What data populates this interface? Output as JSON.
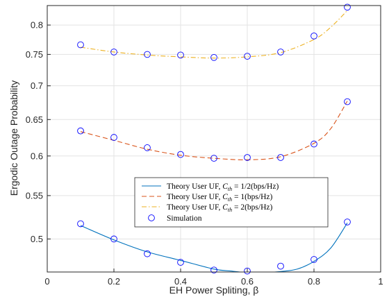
{
  "chart_data": {
    "type": "line",
    "xlabel": "EH Power Spliting, β",
    "ylabel": "Ergodic Outage Probability",
    "xlim": [
      0,
      1
    ],
    "xticks": [
      0,
      0.2,
      0.4,
      0.6,
      0.8,
      1
    ],
    "xtick_labels": [
      "0",
      "0.2",
      "0.4",
      "0.6",
      "0.8",
      "1"
    ],
    "ylim_scale": "log",
    "ylim": [
      0.465,
      0.835
    ],
    "yticks": [
      0.5,
      0.55,
      0.6,
      0.65,
      0.7,
      0.75,
      0.8
    ],
    "ytick_labels": [
      "0.5",
      "0.55",
      "0.6",
      "0.65",
      "0.7",
      "0.75",
      "0.8"
    ],
    "grid": true,
    "legend_position": "lower-center",
    "series": [
      {
        "name": "Theory User UF, C_th = 1/2(bps/Hz)",
        "legend_parts": [
          "Theory User UF, ",
          "C",
          "th",
          " = 1/2(bps/Hz)"
        ],
        "color": "#0072BD",
        "style": "solid",
        "x": [
          0.1,
          0.2,
          0.3,
          0.4,
          0.5,
          0.55,
          0.6,
          0.65,
          0.7,
          0.75,
          0.8,
          0.85,
          0.9
        ],
        "y": [
          0.515,
          0.499,
          0.486,
          0.477,
          0.468,
          0.466,
          0.4645,
          0.4645,
          0.4655,
          0.468,
          0.476,
          0.49,
          0.518
        ]
      },
      {
        "name": "Theory User UF, C_th = 1(bps/Hz)",
        "legend_parts": [
          "Theory User UF, ",
          "C",
          "th",
          " = 1(bps/Hz)"
        ],
        "color": "#D95319",
        "style": "dashed",
        "x": [
          0.1,
          0.2,
          0.3,
          0.4,
          0.5,
          0.6,
          0.7,
          0.8,
          0.85,
          0.9
        ],
        "y": [
          0.633,
          0.621,
          0.609,
          0.601,
          0.597,
          0.595,
          0.599,
          0.617,
          0.637,
          0.677
        ]
      },
      {
        "name": "Theory User UF, C_th = 2(bps/Hz)",
        "legend_parts": [
          "Theory User UF, ",
          "C",
          "th",
          " = 2(bps/Hz)"
        ],
        "color": "#EDB120",
        "style": "dashdot",
        "x": [
          0.1,
          0.2,
          0.3,
          0.4,
          0.5,
          0.6,
          0.7,
          0.8,
          0.85,
          0.9
        ],
        "y": [
          0.762,
          0.754,
          0.749,
          0.746,
          0.744,
          0.746,
          0.753,
          0.775,
          0.796,
          0.826
        ]
      }
    ],
    "simulation": {
      "name": "Simulation",
      "marker": "circle",
      "color": "#0000FF",
      "points": [
        {
          "x": 0.1,
          "y": 0.517
        },
        {
          "x": 0.2,
          "y": 0.5
        },
        {
          "x": 0.3,
          "y": 0.484
        },
        {
          "x": 0.4,
          "y": 0.475
        },
        {
          "x": 0.5,
          "y": 0.467
        },
        {
          "x": 0.6,
          "y": 0.466
        },
        {
          "x": 0.7,
          "y": 0.471
        },
        {
          "x": 0.8,
          "y": 0.478
        },
        {
          "x": 0.9,
          "y": 0.519
        },
        {
          "x": 0.1,
          "y": 0.634
        },
        {
          "x": 0.2,
          "y": 0.625
        },
        {
          "x": 0.3,
          "y": 0.611
        },
        {
          "x": 0.4,
          "y": 0.602
        },
        {
          "x": 0.5,
          "y": 0.597
        },
        {
          "x": 0.6,
          "y": 0.598
        },
        {
          "x": 0.7,
          "y": 0.598
        },
        {
          "x": 0.8,
          "y": 0.616
        },
        {
          "x": 0.9,
          "y": 0.676
        },
        {
          "x": 0.1,
          "y": 0.766
        },
        {
          "x": 0.2,
          "y": 0.754
        },
        {
          "x": 0.3,
          "y": 0.75
        },
        {
          "x": 0.4,
          "y": 0.749
        },
        {
          "x": 0.5,
          "y": 0.745
        },
        {
          "x": 0.6,
          "y": 0.747
        },
        {
          "x": 0.7,
          "y": 0.754
        },
        {
          "x": 0.8,
          "y": 0.781
        },
        {
          "x": 0.9,
          "y": 0.832
        }
      ]
    }
  }
}
